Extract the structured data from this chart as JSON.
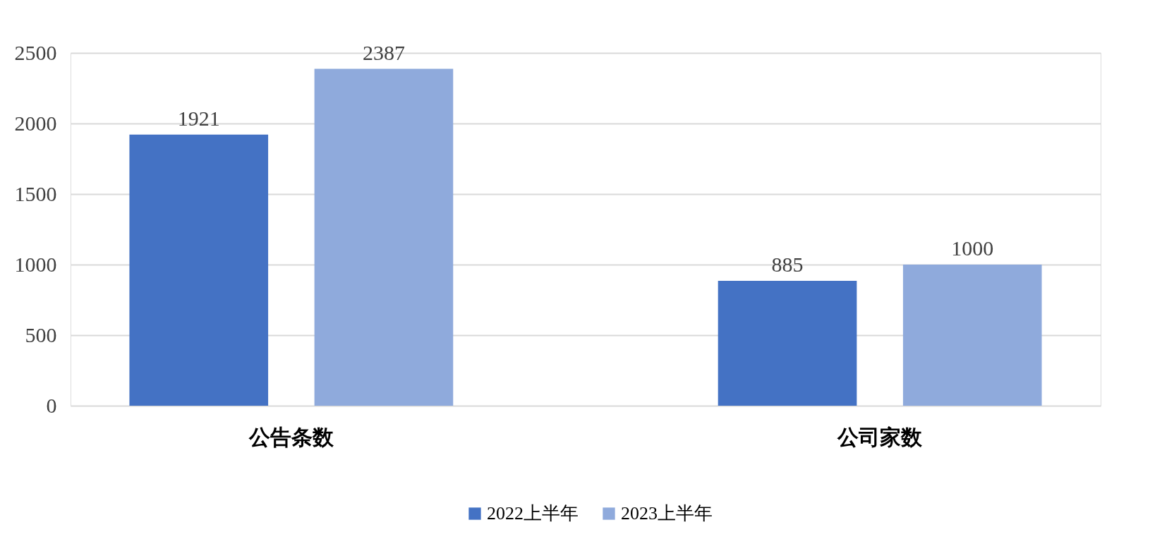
{
  "chart_data": {
    "type": "bar",
    "categories": [
      "公告条数",
      "公司家数"
    ],
    "series": [
      {
        "name": "2022上半年",
        "color": "#4472c4",
        "values": [
          1921,
          885
        ]
      },
      {
        "name": "2023上半年",
        "color": "#8faadc",
        "values": [
          2387,
          1000
        ]
      }
    ],
    "ylim": [
      0,
      2500
    ],
    "yticks": [
      0,
      500,
      1000,
      1500,
      2000,
      2500
    ],
    "grid": "y",
    "legend": "bottom",
    "data_labels": true
  }
}
